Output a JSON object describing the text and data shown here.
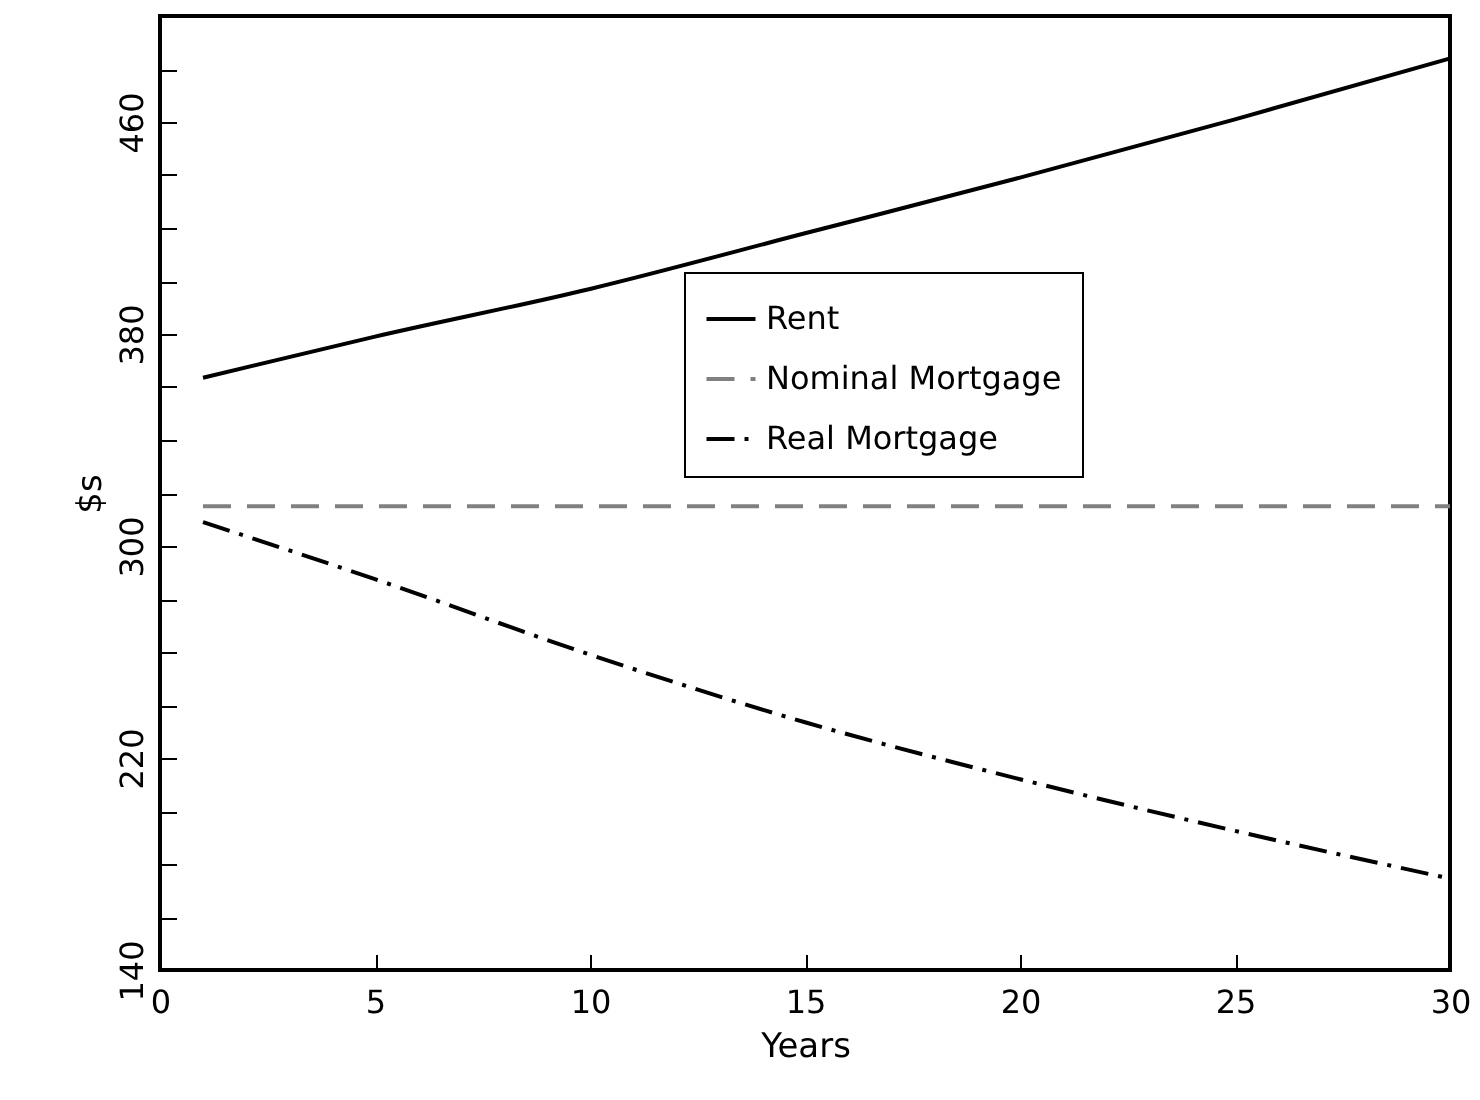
{
  "chart_data": {
    "type": "line",
    "xlabel": "Years",
    "ylabel": "$s",
    "x": [
      1,
      5,
      10,
      15,
      20,
      25,
      30
    ],
    "series": [
      {
        "name": "Rent",
        "color": "#000000",
        "line_style": "solid",
        "values": [
          363.5,
          379,
          397,
          418,
          439,
          461,
          484
        ]
      },
      {
        "name": "Nominal Mortgage",
        "color": "#808080",
        "line_style": "dashed",
        "values": [
          315,
          315,
          315,
          315,
          315,
          315,
          315
        ]
      },
      {
        "name": "Real Mortgage",
        "color": "#000000",
        "line_style": "dashdot",
        "values": [
          309,
          287.5,
          259,
          233.5,
          212,
          192.5,
          174.5
        ]
      }
    ],
    "xlim": [
      0,
      30
    ],
    "xticks": [
      0,
      5,
      10,
      15,
      20,
      25,
      30
    ],
    "ylim": [
      140,
      500
    ],
    "yticks": [
      140,
      {
        "value": 160,
        "label": null
      },
      {
        "value": 180,
        "label": null
      },
      {
        "value": 200,
        "label": null
      },
      220,
      {
        "value": 240,
        "label": null
      },
      {
        "value": 260,
        "label": null
      },
      {
        "value": 280,
        "label": null
      },
      300,
      {
        "value": 320,
        "label": null
      },
      {
        "value": 340,
        "label": null
      },
      {
        "value": 360,
        "label": null
      },
      380,
      {
        "value": 400,
        "label": null
      },
      {
        "value": 420,
        "label": null
      },
      {
        "value": 440,
        "label": null
      },
      460,
      {
        "value": 480,
        "label": null
      }
    ],
    "grid": false,
    "legend": "top",
    "marker": "none"
  }
}
